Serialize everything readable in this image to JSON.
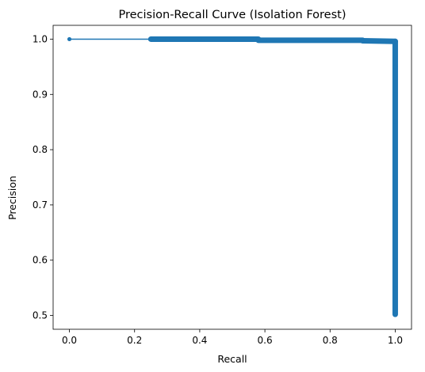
{
  "chart_data": {
    "type": "line",
    "title": "Precision-Recall Curve (Isolation Forest)",
    "xlabel": "Recall",
    "ylabel": "Precision",
    "xlim": [
      -0.05,
      1.05
    ],
    "ylim": [
      0.475,
      1.025
    ],
    "xticks": [
      "0.0",
      "0.2",
      "0.4",
      "0.6",
      "0.8",
      "1.0"
    ],
    "yticks": [
      "0.5",
      "0.6",
      "0.7",
      "0.8",
      "0.9",
      "1.0"
    ],
    "grid": false,
    "color": "#1f77b4",
    "marker": "circle",
    "series": [
      {
        "x": [
          0.0,
          0.25,
          0.3,
          0.4,
          0.5,
          0.58,
          0.6,
          0.7,
          0.8,
          0.9,
          0.95,
          1.0,
          1.0,
          1.0,
          1.0,
          1.0,
          1.0,
          1.0,
          1.0,
          1.0,
          1.0,
          1.0
        ],
        "y": [
          1.0,
          1.0,
          1.0,
          1.0,
          1.0,
          0.999,
          0.998,
          0.998,
          0.998,
          0.997,
          0.997,
          0.996,
          0.95,
          0.9,
          0.85,
          0.8,
          0.75,
          0.7,
          0.65,
          0.6,
          0.55,
          0.502
        ]
      }
    ]
  }
}
